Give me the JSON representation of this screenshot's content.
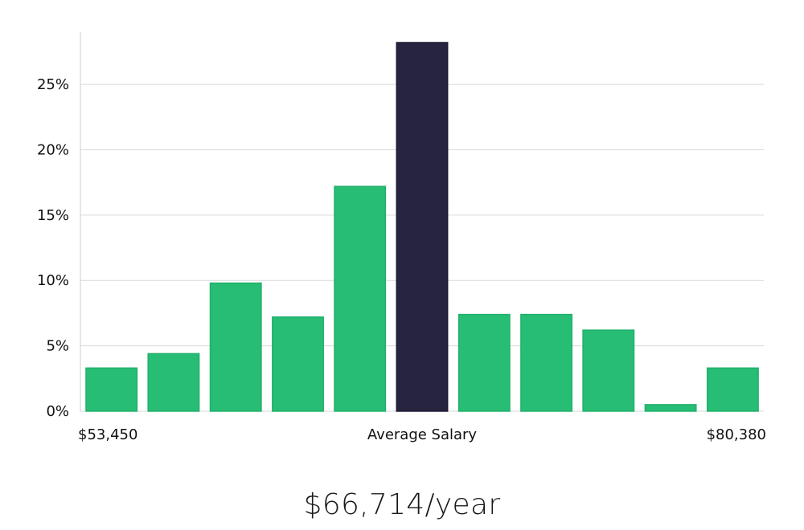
{
  "colors": {
    "bar": "#27bd75",
    "highlight": "#27243f",
    "grid": "#d9d9d9",
    "axis": "#cccccc"
  },
  "chart_data": {
    "type": "bar",
    "categories": [
      "1",
      "2",
      "3",
      "4",
      "5",
      "6",
      "7",
      "8",
      "9",
      "10",
      "11"
    ],
    "values": [
      3.3,
      4.4,
      9.8,
      7.2,
      17.2,
      28.2,
      7.4,
      7.4,
      6.2,
      0.5,
      3.3
    ],
    "highlight_index": 5,
    "ylim": [
      0,
      29
    ],
    "yticks": [
      0,
      5,
      10,
      15,
      20,
      25
    ],
    "ytick_labels": [
      "0%",
      "5%",
      "10%",
      "15%",
      "20%",
      "25%"
    ],
    "x_labels": {
      "left": "$53,450",
      "center": "Average Salary",
      "right": "$80,380"
    },
    "grid": true,
    "legend": "none"
  },
  "headline": "$66,714/year"
}
